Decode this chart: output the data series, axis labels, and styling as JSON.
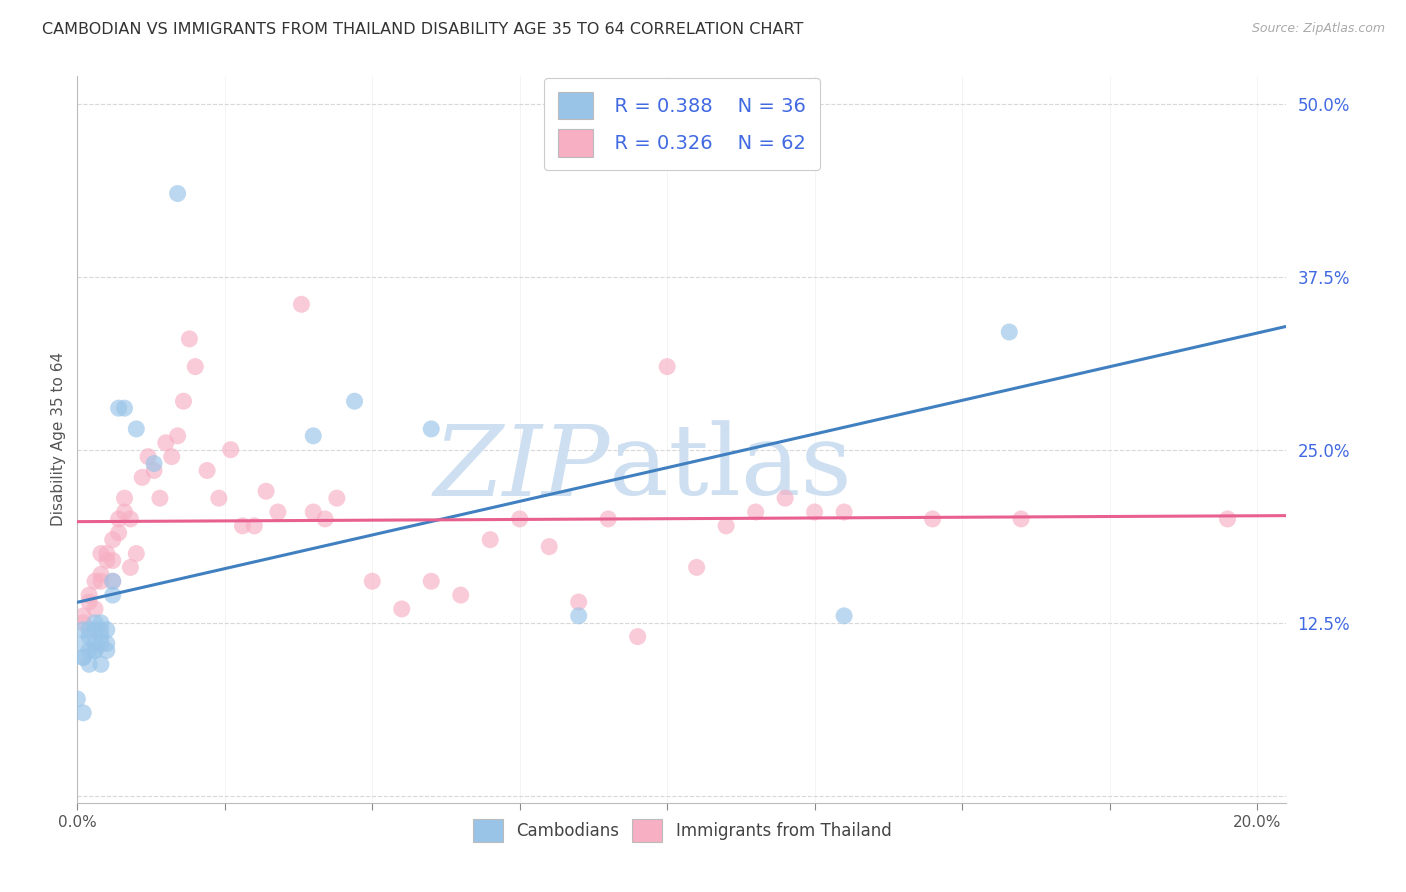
{
  "title": "CAMBODIAN VS IMMIGRANTS FROM THAILAND DISABILITY AGE 35 TO 64 CORRELATION CHART",
  "source": "Source: ZipAtlas.com",
  "ylabel": "Disability Age 35 to 64",
  "xlim": [
    0.0,
    0.205
  ],
  "ylim": [
    -0.005,
    0.52
  ],
  "y_ticks": [
    0.0,
    0.125,
    0.25,
    0.375,
    0.5
  ],
  "y_tick_labels": [
    "",
    "12.5%",
    "25.0%",
    "37.5%",
    "50.0%"
  ],
  "x_ticks": [
    0.0,
    0.025,
    0.05,
    0.075,
    0.1,
    0.125,
    0.15,
    0.175,
    0.2
  ],
  "x_tick_labels_bottom": [
    "0.0%",
    "",
    "",
    "",
    "",
    "",
    "",
    "",
    "20.0%"
  ],
  "legend1_r": "R = 0.388",
  "legend1_n": "N = 36",
  "legend2_r": "R = 0.326",
  "legend2_n": "N = 62",
  "blue_fill": "#99c4e8",
  "pink_fill": "#f7afc3",
  "blue_line": "#4080c0",
  "pink_line": "#e86090",
  "title_color": "#333333",
  "source_color": "#aaaaaa",
  "stat_color": "#4169E1",
  "watermark_color": "#cddff0",
  "bg_color": "#ffffff",
  "grid_color": "#d8d8d8",
  "bottom_legend_color": "#444444",
  "cambodians_x": [
    0.0,
    0.001,
    0.001,
    0.001,
    0.001,
    0.001,
    0.002,
    0.002,
    0.002,
    0.002,
    0.003,
    0.003,
    0.003,
    0.003,
    0.003,
    0.004,
    0.004,
    0.004,
    0.004,
    0.004,
    0.005,
    0.005,
    0.005,
    0.006,
    0.006,
    0.007,
    0.008,
    0.01,
    0.013,
    0.017,
    0.04,
    0.047,
    0.06,
    0.085,
    0.13,
    0.158
  ],
  "cambodians_y": [
    0.07,
    0.06,
    0.1,
    0.11,
    0.12,
    0.1,
    0.095,
    0.105,
    0.12,
    0.115,
    0.11,
    0.105,
    0.12,
    0.125,
    0.105,
    0.115,
    0.12,
    0.125,
    0.095,
    0.11,
    0.11,
    0.105,
    0.12,
    0.145,
    0.155,
    0.28,
    0.28,
    0.265,
    0.24,
    0.435,
    0.26,
    0.285,
    0.265,
    0.13,
    0.13,
    0.335
  ],
  "thailand_x": [
    0.001,
    0.001,
    0.002,
    0.002,
    0.003,
    0.003,
    0.004,
    0.004,
    0.004,
    0.005,
    0.005,
    0.006,
    0.006,
    0.006,
    0.007,
    0.007,
    0.008,
    0.008,
    0.009,
    0.009,
    0.01,
    0.011,
    0.012,
    0.013,
    0.014,
    0.015,
    0.016,
    0.017,
    0.018,
    0.019,
    0.02,
    0.022,
    0.024,
    0.026,
    0.028,
    0.03,
    0.032,
    0.034,
    0.038,
    0.04,
    0.042,
    0.044,
    0.05,
    0.055,
    0.06,
    0.065,
    0.07,
    0.075,
    0.08,
    0.085,
    0.09,
    0.095,
    0.1,
    0.105,
    0.11,
    0.115,
    0.12,
    0.125,
    0.13,
    0.145,
    0.16,
    0.195
  ],
  "thailand_y": [
    0.125,
    0.13,
    0.14,
    0.145,
    0.135,
    0.155,
    0.155,
    0.16,
    0.175,
    0.17,
    0.175,
    0.155,
    0.17,
    0.185,
    0.19,
    0.2,
    0.205,
    0.215,
    0.165,
    0.2,
    0.175,
    0.23,
    0.245,
    0.235,
    0.215,
    0.255,
    0.245,
    0.26,
    0.285,
    0.33,
    0.31,
    0.235,
    0.215,
    0.25,
    0.195,
    0.195,
    0.22,
    0.205,
    0.355,
    0.205,
    0.2,
    0.215,
    0.155,
    0.135,
    0.155,
    0.145,
    0.185,
    0.2,
    0.18,
    0.14,
    0.2,
    0.115,
    0.31,
    0.165,
    0.195,
    0.205,
    0.215,
    0.205,
    0.205,
    0.2,
    0.2,
    0.2
  ]
}
